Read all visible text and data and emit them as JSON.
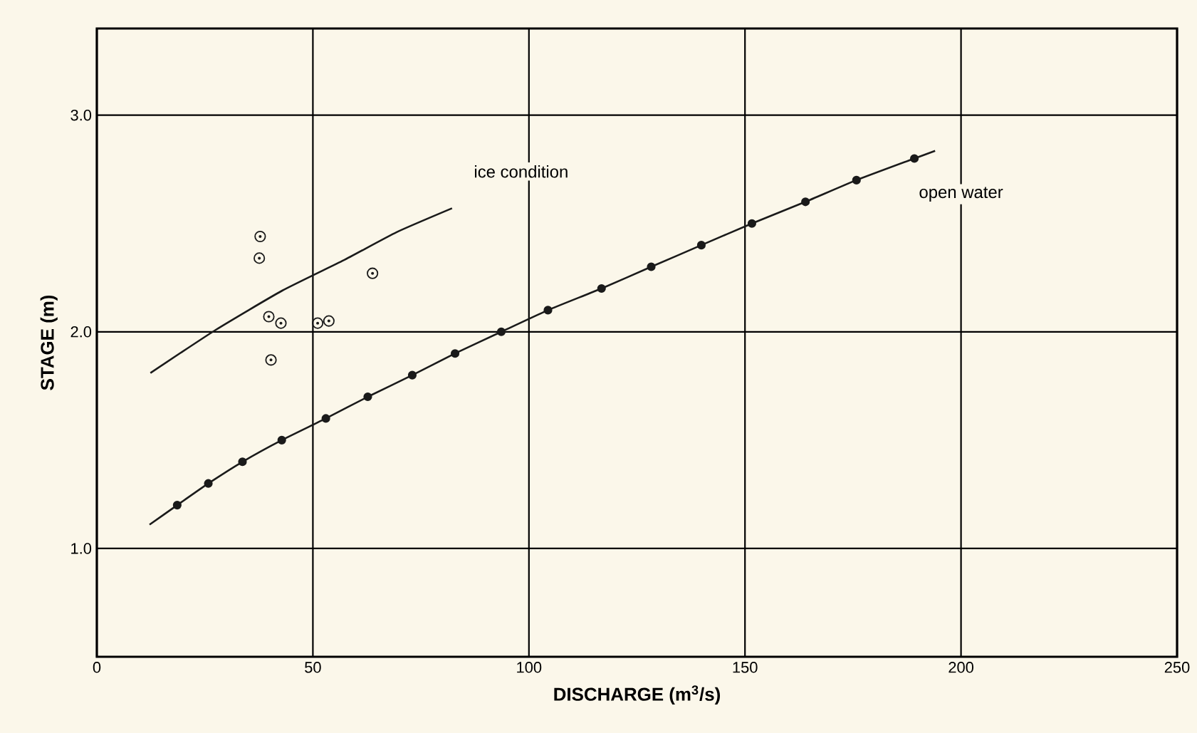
{
  "chart_data": {
    "type": "scatter",
    "xlabel": "DISCHARGE (m$^{3}$/s)",
    "ylabel": "STAGE (m)",
    "xlim": [
      0,
      250
    ],
    "ylim": [
      0.5,
      3.4
    ],
    "xticks": [
      0,
      50,
      100,
      150,
      200,
      250
    ],
    "yticks": [
      {
        "value": 1,
        "label": "1.0"
      },
      {
        "value": 2,
        "label": "2.0"
      },
      {
        "value": 3,
        "label": "3.0"
      }
    ],
    "grid": true,
    "series": [
      {
        "type": "line",
        "name": "ice condition",
        "color": "#1a1a1a",
        "marker": "none",
        "x": [
          12.4,
          27.6,
          42.9,
          57.1,
          69.4,
          82.2
        ],
        "values": [
          1.81,
          2.01,
          2.19,
          2.33,
          2.46,
          2.57
        ]
      },
      {
        "color": "#1a1a1a",
        "marker": "circle",
        "x": [
          37.8,
          37.6,
          39.8,
          42.6,
          40.3,
          51.1,
          53.7,
          63.8
        ],
        "values": [
          2.44,
          2.34,
          2.07,
          2.04,
          1.87,
          2.04,
          2.05,
          2.27
        ]
      },
      {
        "type": "line",
        "name": "open water",
        "color": "#1a1a1a",
        "marker": "none",
        "x": [
          12.2,
          18.6,
          25.8,
          33.7,
          42.8,
          53.0,
          62.7,
          73.0,
          82.9,
          93.6,
          104.4,
          116.8,
          128.3,
          139.9,
          151.6,
          164.0,
          175.8,
          189.2,
          194.0
        ],
        "values": [
          1.11,
          1.2,
          1.3,
          1.4,
          1.5,
          1.6,
          1.7,
          1.8,
          1.9,
          2.0,
          2.1,
          2.2,
          2.3,
          2.4,
          2.5,
          2.6,
          2.7,
          2.8,
          2.835
        ]
      },
      {
        "color": "#1a1a1a",
        "marker": "circle",
        "x": [
          18.6,
          25.8,
          33.7,
          42.8,
          53.0,
          62.7,
          73.0,
          82.9,
          93.6,
          104.4,
          116.8,
          128.3,
          139.9,
          151.6,
          164.0,
          175.8,
          189.2
        ],
        "values": [
          1.2,
          1.3,
          1.4,
          1.5,
          1.6,
          1.7,
          1.8,
          1.9,
          2.0,
          2.1,
          2.2,
          2.3,
          2.4,
          2.5,
          2.6,
          2.7,
          2.8
        ]
      }
    ]
  }
}
